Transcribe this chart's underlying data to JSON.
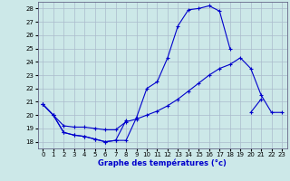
{
  "title": "Graphe des températures (°c)",
  "background_color": "#cce8e8",
  "grid_color": "#aabbcc",
  "line_color": "#0000cc",
  "ylim": [
    17.5,
    28.5
  ],
  "xlim": [
    -0.5,
    23.5
  ],
  "yticks": [
    18,
    19,
    20,
    21,
    22,
    23,
    24,
    25,
    26,
    27,
    28
  ],
  "x_ticks": [
    0,
    1,
    2,
    3,
    4,
    5,
    6,
    7,
    8,
    9,
    10,
    11,
    12,
    13,
    14,
    15,
    16,
    17,
    18,
    19,
    20,
    21,
    22,
    23
  ],
  "line1_y": [
    20.8,
    20.0,
    18.7,
    18.5,
    18.4,
    18.2,
    18.0,
    18.1,
    19.6,
    null,
    null,
    null,
    null,
    null,
    null,
    null,
    null,
    null,
    null,
    null,
    20.2,
    21.2,
    null,
    null
  ],
  "line2_y": [
    20.8,
    20.0,
    19.2,
    19.1,
    19.1,
    19.0,
    18.9,
    18.9,
    19.5,
    19.7,
    20.0,
    20.3,
    20.7,
    21.2,
    21.8,
    22.4,
    23.0,
    23.5,
    23.8,
    24.3,
    23.5,
    21.5,
    20.2,
    20.2
  ],
  "line3_y": [
    20.8,
    20.0,
    18.7,
    18.5,
    18.4,
    18.2,
    18.0,
    18.1,
    18.1,
    19.8,
    22.0,
    22.5,
    24.3,
    26.7,
    27.9,
    28.0,
    28.2,
    27.8,
    25.0,
    null,
    null,
    null,
    null,
    null
  ],
  "xlabel_fontsize": 6.0,
  "tick_fontsize": 5.0
}
